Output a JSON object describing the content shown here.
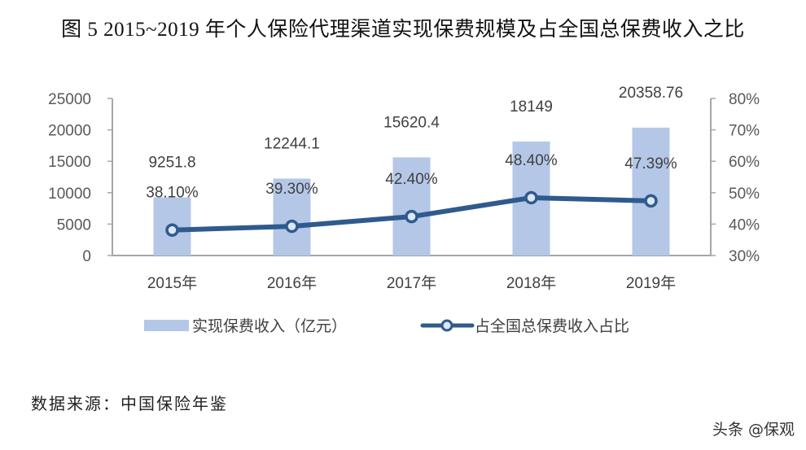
{
  "title": "图 5 2015~2019 年个人保险代理渠道实现保费规模及占全国总保费收入之比",
  "source": "数据来源：中国保险年鉴",
  "watermark": "头条 @保观",
  "colors": {
    "bar": "#b4c7e7",
    "line": "#2f5a8e",
    "marker_fill": "#dde6f3",
    "axis": "#a6a6a6"
  },
  "chart_data": {
    "type": "bar+line",
    "title": "图 5 2015~2019 年个人保险代理渠道实现保费规模及占全国总保费收入之比",
    "categories": [
      "2015年",
      "2016年",
      "2017年",
      "2018年",
      "2019年"
    ],
    "series": [
      {
        "name": "实现保费收入（亿元）",
        "type": "bar",
        "axis": "left",
        "values": [
          9251.8,
          12244.1,
          15620.4,
          18149,
          20358.76
        ],
        "labels": [
          "9251.8",
          "12244.1",
          "15620.4",
          "18149",
          "20358.76"
        ]
      },
      {
        "name": "占全国总保费收入占比",
        "type": "line",
        "axis": "right",
        "values": [
          38.1,
          39.3,
          42.4,
          48.4,
          47.39
        ],
        "labels": [
          "38.10%",
          "39.30%",
          "42.40%",
          "48.40%",
          "47.39%"
        ]
      }
    ],
    "left_axis": {
      "ylim": [
        0,
        25000
      ],
      "ticks": [
        "0",
        "5000",
        "10000",
        "15000",
        "20000",
        "25000"
      ]
    },
    "right_axis": {
      "ylim": [
        30,
        80
      ],
      "ticks": [
        "30%",
        "40%",
        "50%",
        "60%",
        "70%",
        "80%"
      ]
    },
    "xlabel": "",
    "ylabel": "",
    "grid": false,
    "legend_position": "bottom"
  }
}
